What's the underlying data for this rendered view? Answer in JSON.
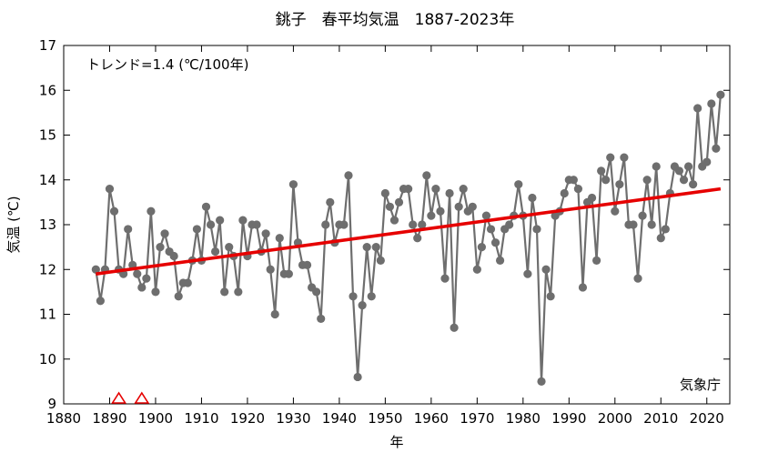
{
  "chart_data": {
    "type": "line",
    "title": "銚子　春平均気温　1887-2023年",
    "xlabel": "年",
    "ylabel": "気温 (℃)",
    "xlim": [
      1880,
      2025
    ],
    "ylim": [
      9,
      17
    ],
    "xticks": [
      1880,
      1890,
      1900,
      1910,
      1920,
      1930,
      1940,
      1950,
      1960,
      1970,
      1980,
      1990,
      2000,
      2010,
      2020
    ],
    "yticks": [
      9,
      10,
      11,
      12,
      13,
      14,
      15,
      16,
      17
    ],
    "grid": false,
    "trend_label": "トレンド=1.4 (℃/100年)",
    "credit": "気象庁",
    "colors": {
      "series": "#6e6e6e",
      "trend": "#e60000",
      "marker": "#e60000"
    },
    "series": [
      {
        "x": [
          1887,
          1888,
          1889,
          1890,
          1891,
          1892,
          1893,
          1894,
          1895,
          1896,
          1897,
          1898,
          1899,
          1900,
          1901,
          1902,
          1903,
          1904,
          1905,
          1906,
          1907,
          1908,
          1909,
          1910,
          1911,
          1912,
          1913,
          1914,
          1915,
          1916,
          1917,
          1918,
          1919,
          1920,
          1921,
          1922,
          1923,
          1924,
          1925,
          1926,
          1927,
          1928,
          1929,
          1930,
          1931,
          1932,
          1933,
          1934,
          1935,
          1936,
          1937,
          1938,
          1939,
          1940,
          1941,
          1942,
          1943,
          1944,
          1945,
          1946,
          1947,
          1948,
          1949,
          1950,
          1951,
          1952,
          1953,
          1954,
          1955,
          1956,
          1957,
          1958,
          1959,
          1960,
          1961,
          1962,
          1963,
          1964,
          1965,
          1966,
          1967,
          1968,
          1969,
          1970,
          1971,
          1972,
          1973,
          1974,
          1975,
          1976,
          1977,
          1978,
          1979,
          1980,
          1981,
          1982,
          1983,
          1984,
          1985,
          1986,
          1987,
          1988,
          1989,
          1990,
          1991,
          1992,
          1993,
          1994,
          1995,
          1996,
          1997,
          1998,
          1999,
          2000,
          2001,
          2002,
          2003,
          2004,
          2005,
          2006,
          2007,
          2008,
          2009,
          2010,
          2011,
          2012,
          2013,
          2014,
          2015,
          2016,
          2017,
          2018,
          2019,
          2020,
          2021,
          2022,
          2023
        ],
        "values": [
          12.0,
          11.3,
          12.0,
          13.8,
          13.3,
          12.0,
          11.9,
          12.9,
          12.1,
          11.9,
          11.6,
          11.8,
          13.3,
          11.5,
          12.5,
          12.8,
          12.4,
          12.3,
          11.4,
          11.7,
          11.7,
          12.2,
          12.9,
          12.2,
          13.4,
          13.0,
          12.4,
          13.1,
          11.5,
          12.5,
          12.3,
          11.5,
          13.1,
          12.3,
          13.0,
          13.0,
          12.4,
          12.8,
          12.0,
          11.0,
          12.7,
          11.9,
          11.9,
          13.9,
          12.6,
          12.1,
          12.1,
          11.6,
          11.5,
          10.9,
          13.0,
          13.5,
          12.6,
          13.0,
          13.0,
          14.1,
          11.4,
          9.6,
          11.2,
          12.5,
          11.4,
          12.5,
          12.2,
          13.7,
          13.4,
          13.1,
          13.5,
          13.8,
          13.8,
          13.0,
          12.7,
          13.0,
          14.1,
          13.2,
          13.8,
          13.3,
          11.8,
          13.7,
          10.7,
          13.4,
          13.8,
          13.3,
          13.4,
          12.0,
          12.5,
          13.2,
          12.9,
          12.6,
          12.2,
          12.9,
          13.0,
          13.2,
          13.9,
          13.2,
          11.9,
          13.6,
          12.9,
          9.5,
          12.0,
          11.4,
          13.2,
          13.3,
          13.7,
          14.0,
          14.0,
          13.8,
          11.6,
          13.5,
          13.6,
          12.2,
          14.2,
          14.0,
          14.5,
          13.3,
          13.9,
          14.5,
          13.0,
          13.0,
          11.8,
          13.2,
          14.0,
          13.0,
          14.3,
          12.7,
          12.9,
          13.7,
          14.3,
          14.2,
          14.0,
          14.3,
          13.9,
          15.6,
          14.3,
          14.4,
          15.7,
          14.7,
          15.9
        ]
      }
    ],
    "trend_line": {
      "x": [
        1887,
        2023
      ],
      "y": [
        11.9,
        13.8
      ]
    },
    "station_change_markers": [
      1892,
      1897
    ]
  }
}
